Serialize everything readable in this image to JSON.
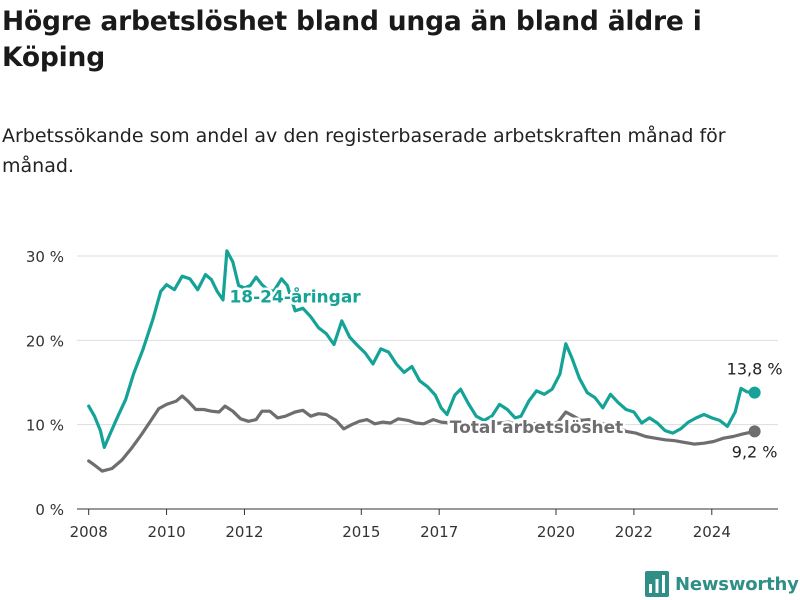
{
  "title": "Högre arbetslöshet bland unga än bland äldre i Köping",
  "subtitle": "Arbetssökande som andel av den registerbaserade arbetskraften månad för månad.",
  "brand": {
    "name": "Newsworthy",
    "color": "#2f8f86"
  },
  "chart_data": {
    "type": "line",
    "title": "",
    "xlabel": "",
    "ylabel": "",
    "xlim": [
      2007.7,
      2025.7
    ],
    "ylim": [
      0,
      30
    ],
    "x_ticks": [
      2008,
      2010,
      2012,
      2015,
      2017,
      2020,
      2022,
      2024
    ],
    "y_ticks": [
      {
        "value": 0,
        "label": "0 %"
      },
      {
        "value": 10,
        "label": "10 %"
      },
      {
        "value": 20,
        "label": "20 %"
      },
      {
        "value": 30,
        "label": "30 %"
      }
    ],
    "grid": true,
    "series": [
      {
        "name": "18-24-åringar",
        "color": "#14a396",
        "end_label": "13,8 %",
        "points": [
          [
            2008.0,
            12.2
          ],
          [
            2008.15,
            11.0
          ],
          [
            2008.3,
            9.3
          ],
          [
            2008.4,
            7.3
          ],
          [
            2008.55,
            8.9
          ],
          [
            2008.75,
            11.0
          ],
          [
            2008.95,
            13.0
          ],
          [
            2009.15,
            16.0
          ],
          [
            2009.4,
            19.0
          ],
          [
            2009.65,
            22.5
          ],
          [
            2009.85,
            25.8
          ],
          [
            2010.0,
            26.6
          ],
          [
            2010.2,
            26.0
          ],
          [
            2010.4,
            27.6
          ],
          [
            2010.6,
            27.3
          ],
          [
            2010.8,
            26.0
          ],
          [
            2011.0,
            27.8
          ],
          [
            2011.15,
            27.2
          ],
          [
            2011.3,
            25.8
          ],
          [
            2011.45,
            24.8
          ],
          [
            2011.55,
            30.6
          ],
          [
            2011.7,
            29.3
          ],
          [
            2011.85,
            26.5
          ],
          [
            2012.0,
            26.2
          ],
          [
            2012.15,
            26.5
          ],
          [
            2012.3,
            27.5
          ],
          [
            2012.45,
            26.6
          ],
          [
            2012.6,
            26.0
          ],
          [
            2012.75,
            25.8
          ],
          [
            2012.95,
            27.3
          ],
          [
            2013.1,
            26.5
          ],
          [
            2013.3,
            23.5
          ],
          [
            2013.5,
            23.8
          ],
          [
            2013.7,
            22.8
          ],
          [
            2013.9,
            21.5
          ],
          [
            2014.1,
            20.8
          ],
          [
            2014.3,
            19.5
          ],
          [
            2014.5,
            22.3
          ],
          [
            2014.7,
            20.4
          ],
          [
            2014.9,
            19.4
          ],
          [
            2015.1,
            18.5
          ],
          [
            2015.3,
            17.2
          ],
          [
            2015.5,
            19.0
          ],
          [
            2015.7,
            18.6
          ],
          [
            2015.9,
            17.2
          ],
          [
            2016.1,
            16.2
          ],
          [
            2016.3,
            16.9
          ],
          [
            2016.5,
            15.2
          ],
          [
            2016.7,
            14.5
          ],
          [
            2016.9,
            13.5
          ],
          [
            2017.05,
            12.0
          ],
          [
            2017.2,
            11.2
          ],
          [
            2017.4,
            13.5
          ],
          [
            2017.55,
            14.2
          ],
          [
            2017.75,
            12.5
          ],
          [
            2017.95,
            11.0
          ],
          [
            2018.15,
            10.5
          ],
          [
            2018.35,
            11.0
          ],
          [
            2018.55,
            12.4
          ],
          [
            2018.75,
            11.8
          ],
          [
            2018.95,
            10.8
          ],
          [
            2019.1,
            11.0
          ],
          [
            2019.3,
            12.8
          ],
          [
            2019.5,
            14.0
          ],
          [
            2019.7,
            13.6
          ],
          [
            2019.9,
            14.2
          ],
          [
            2020.1,
            16.0
          ],
          [
            2020.25,
            19.6
          ],
          [
            2020.4,
            18.0
          ],
          [
            2020.6,
            15.5
          ],
          [
            2020.8,
            13.8
          ],
          [
            2021.0,
            13.2
          ],
          [
            2021.2,
            12.0
          ],
          [
            2021.4,
            13.6
          ],
          [
            2021.6,
            12.6
          ],
          [
            2021.8,
            11.8
          ],
          [
            2022.0,
            11.5
          ],
          [
            2022.2,
            10.2
          ],
          [
            2022.4,
            10.8
          ],
          [
            2022.6,
            10.2
          ],
          [
            2022.8,
            9.3
          ],
          [
            2023.0,
            9.0
          ],
          [
            2023.2,
            9.5
          ],
          [
            2023.4,
            10.3
          ],
          [
            2023.6,
            10.8
          ],
          [
            2023.8,
            11.2
          ],
          [
            2024.0,
            10.8
          ],
          [
            2024.2,
            10.5
          ],
          [
            2024.4,
            9.8
          ],
          [
            2024.6,
            11.5
          ],
          [
            2024.75,
            14.3
          ],
          [
            2024.9,
            13.9
          ],
          [
            2025.1,
            13.8
          ]
        ]
      },
      {
        "name": "Total arbetslöshet",
        "color": "#6f6d70",
        "end_label": "9,2 %",
        "points": [
          [
            2008.0,
            5.7
          ],
          [
            2008.15,
            5.2
          ],
          [
            2008.35,
            4.5
          ],
          [
            2008.6,
            4.8
          ],
          [
            2008.85,
            5.8
          ],
          [
            2009.1,
            7.2
          ],
          [
            2009.35,
            8.8
          ],
          [
            2009.6,
            10.5
          ],
          [
            2009.8,
            11.9
          ],
          [
            2010.0,
            12.4
          ],
          [
            2010.25,
            12.8
          ],
          [
            2010.4,
            13.4
          ],
          [
            2010.55,
            12.8
          ],
          [
            2010.75,
            11.8
          ],
          [
            2010.95,
            11.8
          ],
          [
            2011.15,
            11.6
          ],
          [
            2011.35,
            11.5
          ],
          [
            2011.5,
            12.2
          ],
          [
            2011.7,
            11.6
          ],
          [
            2011.9,
            10.7
          ],
          [
            2012.1,
            10.4
          ],
          [
            2012.3,
            10.6
          ],
          [
            2012.45,
            11.6
          ],
          [
            2012.65,
            11.6
          ],
          [
            2012.85,
            10.8
          ],
          [
            2013.05,
            11.0
          ],
          [
            2013.3,
            11.5
          ],
          [
            2013.5,
            11.7
          ],
          [
            2013.7,
            11.0
          ],
          [
            2013.9,
            11.3
          ],
          [
            2014.1,
            11.2
          ],
          [
            2014.35,
            10.5
          ],
          [
            2014.55,
            9.5
          ],
          [
            2014.75,
            10.0
          ],
          [
            2014.95,
            10.4
          ],
          [
            2015.15,
            10.6
          ],
          [
            2015.35,
            10.1
          ],
          [
            2015.55,
            10.3
          ],
          [
            2015.75,
            10.2
          ],
          [
            2015.95,
            10.7
          ],
          [
            2016.2,
            10.5
          ],
          [
            2016.4,
            10.2
          ],
          [
            2016.6,
            10.1
          ],
          [
            2016.85,
            10.6
          ],
          [
            2017.05,
            10.3
          ],
          [
            2017.3,
            10.2
          ],
          [
            2017.55,
            10.1
          ],
          [
            2017.8,
            9.9
          ],
          [
            2018.05,
            10.1
          ],
          [
            2018.3,
            10.0
          ],
          [
            2018.55,
            10.2
          ],
          [
            2018.8,
            10.3
          ],
          [
            2019.05,
            9.9
          ],
          [
            2019.3,
            10.0
          ],
          [
            2019.55,
            10.2
          ],
          [
            2019.8,
            10.0
          ],
          [
            2020.05,
            10.3
          ],
          [
            2020.25,
            11.5
          ],
          [
            2020.45,
            11.0
          ],
          [
            2020.65,
            10.5
          ],
          [
            2020.85,
            10.6
          ],
          [
            2021.05,
            10.3
          ],
          [
            2021.3,
            10.0
          ],
          [
            2021.55,
            9.8
          ],
          [
            2021.8,
            9.2
          ],
          [
            2022.05,
            9.0
          ],
          [
            2022.3,
            8.6
          ],
          [
            2022.55,
            8.4
          ],
          [
            2022.8,
            8.2
          ],
          [
            2023.05,
            8.1
          ],
          [
            2023.3,
            7.9
          ],
          [
            2023.55,
            7.7
          ],
          [
            2023.8,
            7.8
          ],
          [
            2024.05,
            8.0
          ],
          [
            2024.3,
            8.4
          ],
          [
            2024.55,
            8.6
          ],
          [
            2024.8,
            8.9
          ],
          [
            2025.1,
            9.2
          ]
        ]
      }
    ],
    "annotations": [
      {
        "text": "18-24-åringar",
        "series": 0,
        "x": 2013.3,
        "y": 24.5
      },
      {
        "text": "Total arbetslöshet",
        "series": 1,
        "x": 2019.5,
        "y": 9.0
      }
    ]
  }
}
